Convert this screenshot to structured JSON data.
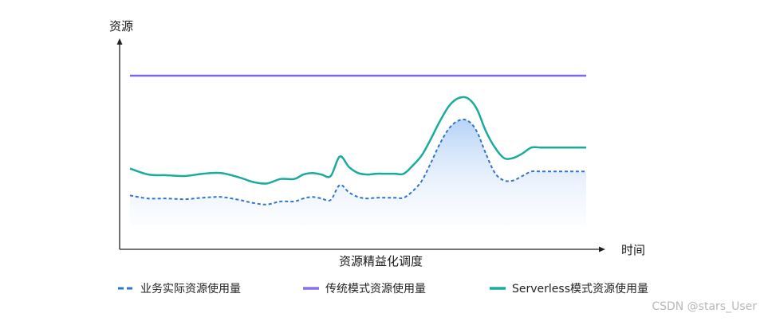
{
  "chart_data": {
    "type": "line",
    "title": "",
    "ylabel": "资源",
    "xlabel": "时间",
    "caption": "资源精益化调度",
    "x": [
      0,
      4,
      8,
      12,
      16,
      20,
      24,
      27,
      30,
      33,
      36,
      38,
      40,
      42,
      44,
      46,
      48,
      50,
      52,
      54,
      56,
      58,
      60,
      62,
      64,
      66,
      68,
      70,
      72,
      74,
      76,
      78,
      80,
      82,
      84,
      86,
      88,
      90,
      92,
      94,
      96,
      98,
      100
    ],
    "series": [
      {
        "name": "业务实际资源使用量",
        "style": "dashed",
        "color": "#2f74d0",
        "values": [
          20,
          18,
          18,
          17.5,
          18.5,
          19,
          17,
          15,
          14,
          16,
          16,
          18,
          19,
          18,
          17,
          27,
          22,
          19,
          18,
          18.5,
          18.5,
          18.5,
          18.5,
          23,
          30,
          42,
          55,
          65,
          70,
          70,
          63,
          48,
          35,
          30,
          30,
          33,
          36,
          36,
          36,
          36,
          36,
          36,
          36
        ]
      },
      {
        "name": "传统模式资源使用量",
        "style": "solid",
        "color": "#7b68ee",
        "values": [
          100,
          100,
          100,
          100,
          100,
          100,
          100,
          100,
          100,
          100,
          100,
          100,
          100,
          100,
          100,
          100,
          100,
          100,
          100,
          100,
          100,
          100,
          100,
          100,
          100,
          100,
          100,
          100,
          100,
          100,
          100,
          100,
          100,
          100,
          100,
          100,
          100,
          100,
          100,
          100,
          100,
          100,
          100
        ]
      },
      {
        "name": "Serverless模式资源使用量",
        "style": "solid",
        "color": "#1aab9c",
        "values": [
          38,
          34,
          33.5,
          33,
          34.5,
          35,
          32,
          29,
          28,
          31,
          31,
          34,
          35,
          34,
          33,
          46,
          39,
          35,
          34,
          34.5,
          34.5,
          34.5,
          34.5,
          40,
          47,
          58,
          70,
          80,
          85,
          85,
          78,
          63,
          52,
          45,
          45,
          48,
          52,
          52,
          52,
          52,
          52,
          52,
          52
        ]
      }
    ]
  },
  "legend": {
    "items": [
      {
        "label": "业务实际资源使用量",
        "color": "#2f74d0"
      },
      {
        "label": "传统模式资源使用量",
        "color": "#8a72e6"
      },
      {
        "label": "Serverless模式资源使用量",
        "color": "#1aab9c"
      }
    ]
  },
  "watermark": "CSDN @stars_User"
}
